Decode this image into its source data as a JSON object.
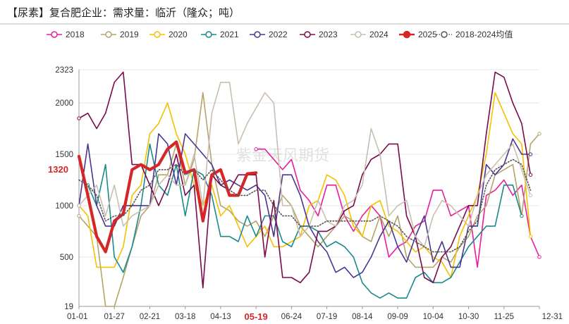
{
  "chart_data": {
    "type": "line",
    "title": "【尿素】复合肥企业：需求量：临沂（隆众；吨）",
    "watermark": "紫金天风期货",
    "y_ticks": [
      19,
      500,
      1000,
      1500,
      2000,
      2323
    ],
    "ylim": [
      19,
      2323
    ],
    "x_tick_labels": [
      "01-01",
      "01-27",
      "02-21",
      "03-18",
      "04-13",
      "05-19",
      "06-24",
      "07-19",
      "08-14",
      "09-09",
      "10-04",
      "10-30",
      "11-25",
      "12-31"
    ],
    "highlight_x_label": "05-19",
    "current_value_label": "1320",
    "grid": "horizontal",
    "legend_position": "top",
    "week_count": 53,
    "series": [
      {
        "name": "2018",
        "color": "#e61e9c",
        "style": "solid",
        "width": 1.6,
        "values": [
          null,
          null,
          null,
          null,
          null,
          null,
          null,
          null,
          null,
          null,
          null,
          null,
          null,
          null,
          null,
          null,
          null,
          null,
          null,
          null,
          1550,
          1550,
          1450,
          1350,
          1450,
          1150,
          1050,
          900,
          1200,
          1200,
          900,
          750,
          900,
          1000,
          900,
          500,
          600,
          650,
          800,
          850,
          1150,
          1150,
          900,
          950,
          1000,
          400,
          1100,
          1150,
          1250,
          1100,
          1200,
          700,
          500
        ]
      },
      {
        "name": "2019",
        "color": "#b5a36a",
        "style": "solid",
        "width": 1.6,
        "values": [
          900,
          800,
          700,
          19,
          19,
          300,
          600,
          900,
          1000,
          1300,
          1300,
          1600,
          1200,
          1450,
          2100,
          1400,
          1000,
          950,
          850,
          800,
          850,
          700,
          900,
          1100,
          1000,
          800,
          700,
          600,
          700,
          800,
          900,
          850,
          700,
          650,
          900,
          700,
          900,
          500,
          400,
          400,
          400,
          500,
          450,
          600,
          700,
          900,
          1000,
          1300,
          1350,
          1400,
          900,
          1600,
          1700
        ]
      },
      {
        "name": "2020",
        "color": "#f5c000",
        "style": "solid",
        "width": 1.6,
        "values": [
          1000,
          900,
          400,
          400,
          400,
          600,
          1100,
          1200,
          1700,
          1800,
          2000,
          1700,
          1500,
          1200,
          1000,
          1200,
          900,
          1000,
          800,
          600,
          700,
          800,
          600,
          600,
          650,
          700,
          1000,
          1050,
          1300,
          1250,
          1100,
          800,
          700,
          1000,
          1050,
          800,
          750,
          650,
          550,
          600,
          500,
          450,
          300,
          700,
          900,
          1100,
          1500,
          2100,
          1900,
          1700,
          1600,
          700,
          null
        ]
      },
      {
        "name": "2021",
        "color": "#1a8a8c",
        "style": "solid",
        "width": 1.6,
        "values": [
          null,
          1200,
          1000,
          1400,
          500,
          350,
          600,
          1000,
          1600,
          1200,
          1100,
          1400,
          900,
          1350,
          1300,
          1100,
          700,
          700,
          650,
          900,
          700,
          900,
          900,
          650,
          600,
          800,
          800,
          750,
          600,
          650,
          600,
          500,
          250,
          150,
          100,
          150,
          100,
          100,
          300,
          350,
          250,
          250,
          300,
          450,
          600,
          700,
          800,
          800,
          1200,
          1200,
          900,
          null,
          null
        ]
      },
      {
        "name": "2022",
        "color": "#4a3590",
        "style": "solid",
        "width": 1.6,
        "values": [
          1000,
          1600,
          1000,
          800,
          800,
          1000,
          1000,
          1000,
          1000,
          1700,
          1600,
          1200,
          1700,
          1600,
          1500,
          1400,
          1200,
          1250,
          1200,
          1150,
          1200,
          1100,
          700,
          1300,
          1300,
          1100,
          800,
          650,
          550,
          350,
          400,
          300,
          350,
          500,
          700,
          850,
          600,
          450,
          700,
          900,
          450,
          650,
          400,
          400,
          800,
          800,
          1400,
          1300,
          1400,
          1650,
          1500,
          1500,
          null
        ]
      },
      {
        "name": "2023",
        "color": "#7a0a4e",
        "style": "solid",
        "width": 1.6,
        "values": [
          1850,
          1900,
          1750,
          1900,
          2200,
          2300,
          1400,
          1400,
          1200,
          1000,
          1200,
          1500,
          1100,
          1200,
          200,
          1300,
          1200,
          1150,
          1300,
          1300,
          1300,
          500,
          1050,
          300,
          300,
          250,
          350,
          750,
          750,
          800,
          950,
          1000,
          1300,
          1450,
          1500,
          1600,
          1600,
          900,
          700,
          300,
          250,
          500,
          600,
          800,
          1000,
          1000,
          1700,
          2300,
          2250,
          2000,
          1800,
          1300,
          null
        ]
      },
      {
        "name": "2024",
        "color": "#c8bfb0",
        "style": "solid",
        "width": 1.6,
        "values": [
          1000,
          1100,
          1200,
          900,
          1200,
          800,
          900,
          950,
          1000,
          1200,
          1300,
          1200,
          1200,
          1500,
          1000,
          1900,
          2200,
          2200,
          1600,
          1800,
          1950,
          2100,
          2000,
          1000,
          1000,
          700,
          800,
          1050,
          850,
          800,
          1000,
          1050,
          1200,
          1750,
          1500,
          900,
          1000,
          1050,
          700,
          600,
          900,
          1050,
          1000,
          900,
          800,
          1100,
          1300,
          1400,
          1500,
          1600,
          1350,
          1100,
          null
        ]
      },
      {
        "name": "2025",
        "color": "#d62728",
        "style": "solid",
        "width": 4.2,
        "values": [
          1480,
          1100,
          700,
          550,
          850,
          920,
          1350,
          1400,
          1350,
          1400,
          1550,
          1620,
          1320,
          1350,
          850,
          1300,
          1350,
          1100,
          1100,
          1310,
          1320,
          null,
          null,
          null,
          null,
          null,
          null,
          null,
          null,
          null,
          null,
          null,
          null,
          null,
          null,
          null,
          null,
          null,
          null,
          null,
          null,
          null,
          null,
          null,
          null,
          null,
          null,
          null,
          null,
          null,
          null,
          null,
          null
        ]
      },
      {
        "name": "2018-2024均值",
        "color": "#555555",
        "style": "dotted",
        "width": 1.6,
        "values": [
          1250,
          1200,
          1100,
          850,
          900,
          900,
          1000,
          1150,
          1200,
          1350,
          1350,
          1400,
          1300,
          1350,
          1250,
          1350,
          1250,
          1150,
          1100,
          1100,
          1150,
          1150,
          1000,
          900,
          900,
          800,
          800,
          800,
          850,
          850,
          850,
          850,
          850,
          850,
          900,
          850,
          800,
          700,
          650,
          600,
          550,
          550,
          550,
          600,
          750,
          850,
          1200,
          1350,
          1400,
          1450,
          1400,
          1150,
          null
        ]
      }
    ]
  }
}
